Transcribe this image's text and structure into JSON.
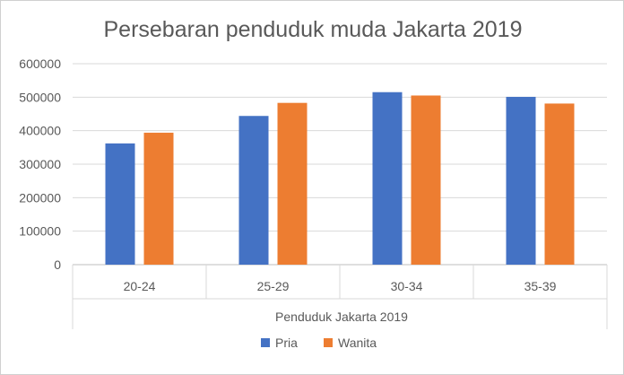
{
  "chart_data": {
    "type": "bar",
    "title": "Persebaran penduduk muda Jakarta 2019",
    "xlabel": "Penduduk Jakarta 2019",
    "ylabel": "",
    "categories": [
      "20-24",
      "25-29",
      "30-34",
      "35-39"
    ],
    "series": [
      {
        "name": "Pria",
        "color": "#4472C4",
        "values": [
          362000,
          444000,
          515000,
          501000
        ]
      },
      {
        "name": "Wanita",
        "color": "#ED7D31",
        "values": [
          394000,
          483000,
          505000,
          481000
        ]
      }
    ],
    "ylim": [
      0,
      600000
    ],
    "yticks": [
      "0",
      "100000",
      "200000",
      "300000",
      "400000",
      "500000",
      "600000"
    ],
    "grid": true,
    "legend_position": "bottom"
  }
}
